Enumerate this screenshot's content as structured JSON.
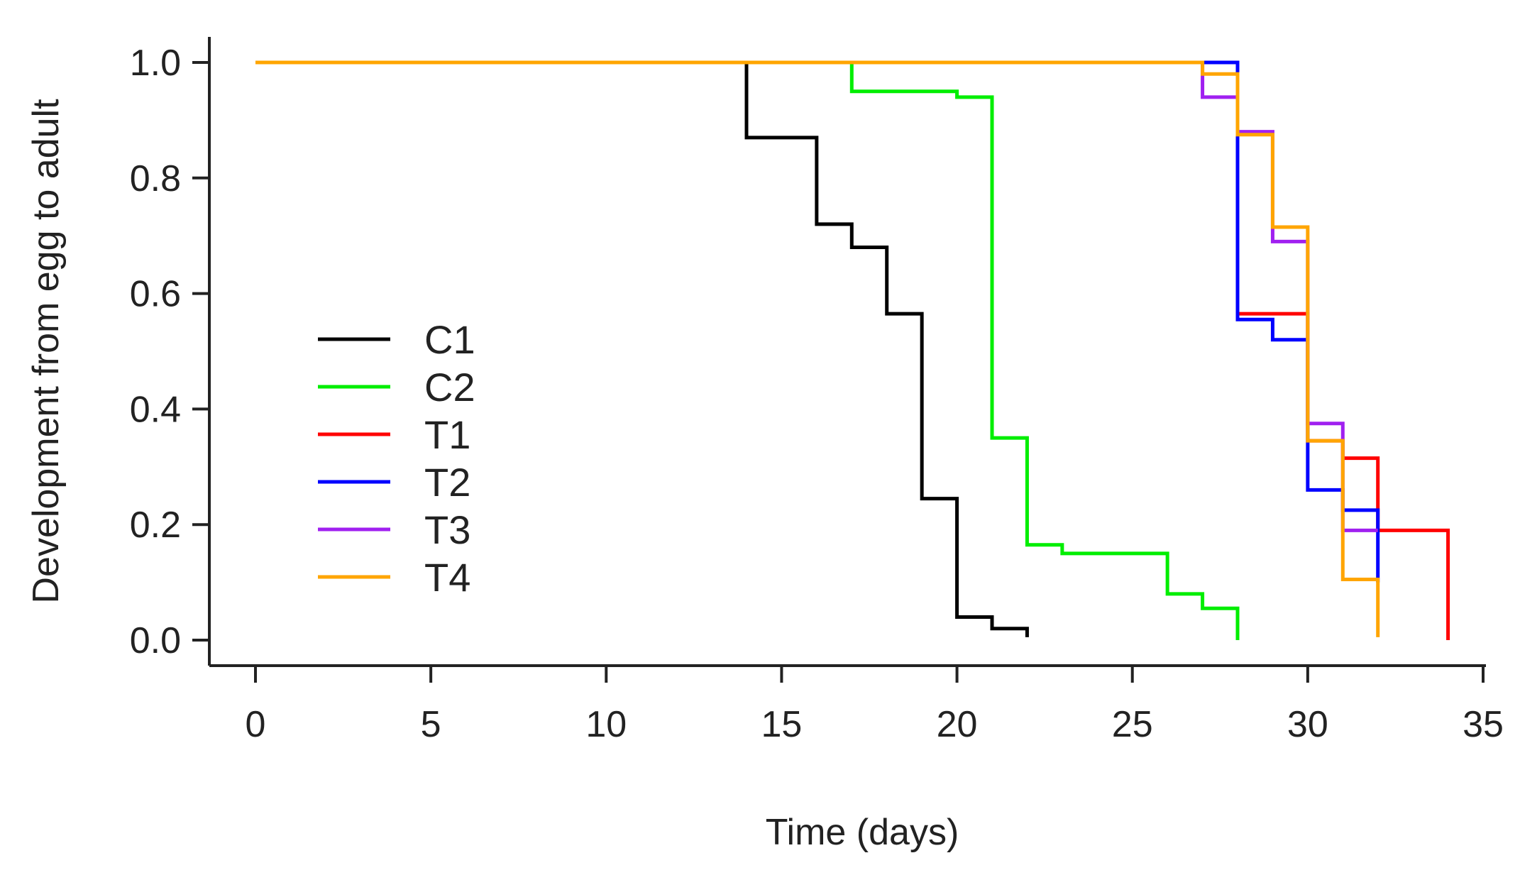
{
  "chart_data": {
    "type": "line",
    "step": true,
    "title": "",
    "xlabel": "Time (days)",
    "ylabel": "Development from egg to adult",
    "xlim": [
      0,
      35
    ],
    "ylim": [
      0,
      1.0
    ],
    "xticks": [
      0,
      5,
      10,
      15,
      20,
      25,
      30,
      35
    ],
    "xtick_labels": [
      "0",
      "5",
      "10",
      "15",
      "20",
      "25",
      "30",
      "35"
    ],
    "yticks": [
      0.0,
      0.2,
      0.4,
      0.6,
      0.8,
      1.0
    ],
    "ytick_labels": [
      "0.0",
      "0.2",
      "0.4",
      "0.6",
      "0.8",
      "1.0"
    ],
    "grid": false,
    "legend_position": "left-center",
    "series": [
      {
        "name": "C1",
        "color": "#000000",
        "x": [
          0,
          14,
          16,
          17,
          18,
          19,
          20,
          21,
          22
        ],
        "y": [
          1.0,
          0.87,
          0.72,
          0.68,
          0.565,
          0.245,
          0.04,
          0.02,
          0.005
        ]
      },
      {
        "name": "C2",
        "color": "#00ee00",
        "x": [
          0,
          17,
          20,
          21,
          22,
          23,
          26,
          27,
          28
        ],
        "y": [
          1.0,
          0.95,
          0.94,
          0.35,
          0.165,
          0.15,
          0.08,
          0.055,
          0.0
        ]
      },
      {
        "name": "T1",
        "color": "#ff0000",
        "x": [
          0,
          28,
          30,
          31,
          32,
          34
        ],
        "y": [
          1.0,
          0.565,
          0.345,
          0.315,
          0.19,
          0.0
        ]
      },
      {
        "name": "T2",
        "color": "#0000ff",
        "x": [
          0,
          28,
          29,
          30,
          31,
          32
        ],
        "y": [
          1.0,
          0.555,
          0.52,
          0.26,
          0.225,
          0.1
        ]
      },
      {
        "name": "T3",
        "color": "#a020f0",
        "x": [
          0,
          27,
          28,
          29,
          30,
          31,
          32
        ],
        "y": [
          1.0,
          0.94,
          0.88,
          0.69,
          0.375,
          0.19,
          0.19
        ]
      },
      {
        "name": "T4",
        "color": "#ffa500",
        "x": [
          0,
          27,
          28,
          29,
          30,
          31,
          32
        ],
        "y": [
          1.0,
          0.98,
          0.875,
          0.715,
          0.345,
          0.105,
          0.005
        ]
      }
    ]
  }
}
